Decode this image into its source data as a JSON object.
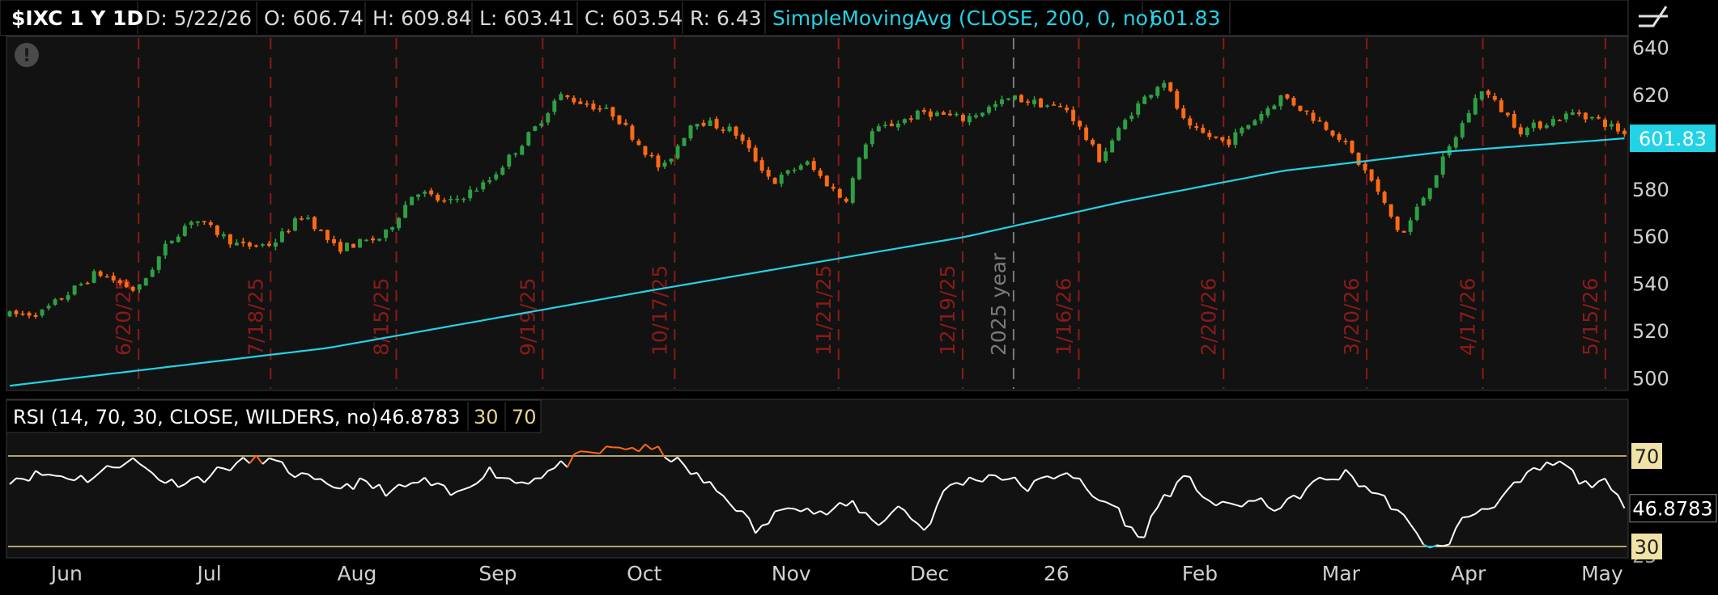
{
  "header": {
    "symbol": "$IXC 1 Y 1D",
    "date": "D: 5/22/26",
    "open": "O: 606.74",
    "high": "H: 609.84",
    "low": "L: 603.41",
    "close": "C: 603.54",
    "range": "R: 6.43",
    "study_label": "SimpleMovingAvg (CLOSE, 200, 0, no)",
    "study_value": "601.83"
  },
  "rsi_header": {
    "study_label": "RSI (14, 70, 30, CLOSE, WILDERS, no)",
    "value": "46.8783",
    "oversold": "30",
    "overbought": "70"
  },
  "colors": {
    "up": "#2ea043",
    "down": "#ff6a14",
    "sma": "#22d3e6",
    "rsi": "#ffffff",
    "rsi_ob": "#ff6a14",
    "rsi_os": "#22d3e6",
    "level_line": "#e8d48a",
    "expiry": "#8b1a1a",
    "year": "#7a7a7a"
  },
  "chart_data": [
    {
      "type": "candlestick",
      "ylim": [
        495,
        645
      ],
      "y_ticks": [
        500,
        520,
        540,
        560,
        580,
        600,
        620,
        640
      ],
      "x_month_labels": [
        "Jun",
        "Jul",
        "Aug",
        "Sep",
        "Oct",
        "Nov",
        "Dec",
        "26",
        "Feb",
        "Mar",
        "Apr",
        "May"
      ],
      "month_fractions": [
        0.035,
        0.127,
        0.215,
        0.304,
        0.397,
        0.488,
        0.575,
        0.659,
        0.746,
        0.834,
        0.915,
        0.997
      ],
      "expiry_labels": [
        "6/20/25",
        "7/18/25",
        "8/15/25",
        "9/19/25",
        "10/17/25",
        "11/21/25",
        "12/19/25",
        "1/16/26",
        "2/20/26",
        "3/20/26",
        "4/17/26",
        "5/15/26"
      ],
      "expiry_fractions": [
        0.081,
        0.164,
        0.243,
        0.335,
        0.418,
        0.521,
        0.599,
        0.672,
        0.763,
        0.853,
        0.926,
        1.003
      ],
      "year_label": "2025 year",
      "year_fraction": 0.631,
      "price_path": [
        [
          0,
          527
        ],
        [
          0.02,
          528
        ],
        [
          0.055,
          545
        ],
        [
          0.08,
          537
        ],
        [
          0.1,
          558
        ],
        [
          0.115,
          568
        ],
        [
          0.145,
          556
        ],
        [
          0.165,
          557
        ],
        [
          0.185,
          570
        ],
        [
          0.205,
          555
        ],
        [
          0.235,
          560
        ],
        [
          0.255,
          580
        ],
        [
          0.275,
          574
        ],
        [
          0.3,
          583
        ],
        [
          0.33,
          606
        ],
        [
          0.345,
          620
        ],
        [
          0.365,
          616
        ],
        [
          0.38,
          612
        ],
        [
          0.41,
          588
        ],
        [
          0.43,
          610
        ],
        [
          0.455,
          605
        ],
        [
          0.48,
          583
        ],
        [
          0.5,
          592
        ],
        [
          0.525,
          575
        ],
        [
          0.54,
          604
        ],
        [
          0.575,
          613
        ],
        [
          0.6,
          610
        ],
        [
          0.63,
          619
        ],
        [
          0.665,
          614
        ],
        [
          0.685,
          593
        ],
        [
          0.705,
          613
        ],
        [
          0.725,
          627
        ],
        [
          0.74,
          606
        ],
        [
          0.765,
          600
        ],
        [
          0.8,
          620
        ],
        [
          0.835,
          603
        ],
        [
          0.855,
          585
        ],
        [
          0.875,
          560
        ],
        [
          0.895,
          585
        ],
        [
          0.925,
          623
        ],
        [
          0.95,
          605
        ],
        [
          0.985,
          613
        ],
        [
          1.0,
          609
        ],
        [
          1.015,
          604
        ]
      ],
      "sma": {
        "start": 497,
        "points": [
          [
            0,
            497
          ],
          [
            0.2,
            513
          ],
          [
            0.4,
            537
          ],
          [
            0.6,
            560
          ],
          [
            0.7,
            575
          ],
          [
            0.8,
            588
          ],
          [
            0.9,
            596
          ],
          [
            1.0,
            601
          ],
          [
            1.015,
            601.83
          ]
        ]
      },
      "last_value": "601.83",
      "n_bars": 250,
      "close": 603.54
    },
    {
      "type": "line",
      "name": "RSI",
      "ylim": [
        25,
        80
      ],
      "levels": [
        30,
        70
      ],
      "level_labels": [
        "70",
        "30"
      ],
      "partial_tick": "25",
      "rsi_path": [
        [
          0,
          60
        ],
        [
          0.02,
          62
        ],
        [
          0.05,
          60
        ],
        [
          0.075,
          69
        ],
        [
          0.1,
          58
        ],
        [
          0.12,
          60
        ],
        [
          0.14,
          66
        ],
        [
          0.16,
          69
        ],
        [
          0.18,
          62
        ],
        [
          0.2,
          56
        ],
        [
          0.22,
          58
        ],
        [
          0.24,
          54
        ],
        [
          0.26,
          59
        ],
        [
          0.28,
          52
        ],
        [
          0.3,
          64
        ],
        [
          0.32,
          58
        ],
        [
          0.335,
          62
        ],
        [
          0.36,
          70
        ],
        [
          0.385,
          74
        ],
        [
          0.41,
          72
        ],
        [
          0.43,
          62
        ],
        [
          0.455,
          49
        ],
        [
          0.47,
          36
        ],
        [
          0.49,
          50
        ],
        [
          0.51,
          44
        ],
        [
          0.53,
          49
        ],
        [
          0.545,
          40
        ],
        [
          0.56,
          48
        ],
        [
          0.575,
          37
        ],
        [
          0.59,
          57
        ],
        [
          0.62,
          62
        ],
        [
          0.64,
          56
        ],
        [
          0.665,
          64
        ],
        [
          0.68,
          52
        ],
        [
          0.695,
          48
        ],
        [
          0.71,
          32
        ],
        [
          0.725,
          52
        ],
        [
          0.74,
          60
        ],
        [
          0.76,
          47
        ],
        [
          0.78,
          50
        ],
        [
          0.8,
          47
        ],
        [
          0.82,
          58
        ],
        [
          0.84,
          62
        ],
        [
          0.87,
          48
        ],
        [
          0.885,
          34
        ],
        [
          0.9,
          28
        ],
        [
          0.915,
          43
        ],
        [
          0.935,
          50
        ],
        [
          0.96,
          64
        ],
        [
          0.975,
          67
        ],
        [
          0.99,
          57
        ],
        [
          1.0,
          60
        ],
        [
          1.015,
          47
        ]
      ],
      "last_value": "46.8783"
    }
  ]
}
